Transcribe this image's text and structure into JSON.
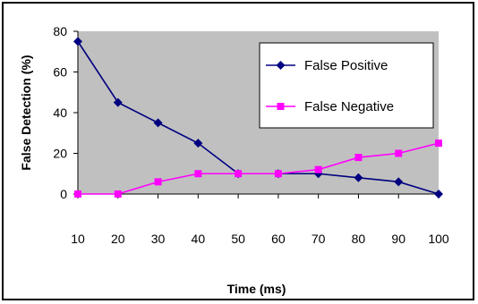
{
  "chart_data": {
    "type": "line",
    "x": [
      10,
      20,
      30,
      40,
      50,
      60,
      70,
      80,
      90,
      100
    ],
    "xlabel": "Time (ms)",
    "ylabel": "False Detection (%)",
    "ylim": [
      0,
      80
    ],
    "yticks": [
      0,
      20,
      40,
      60,
      80
    ],
    "grid": false,
    "legend_position": "top-right",
    "plot_background": "#c0c0c0",
    "series": [
      {
        "name": "False Positive",
        "color": "#000080",
        "marker": "diamond",
        "values": [
          75,
          45,
          35,
          25,
          10,
          10,
          10,
          8,
          6,
          0
        ]
      },
      {
        "name": "False Negative",
        "color": "#ff00ff",
        "marker": "square",
        "values": [
          0,
          0,
          6,
          10,
          10,
          10,
          12,
          18,
          20,
          25
        ]
      }
    ]
  }
}
